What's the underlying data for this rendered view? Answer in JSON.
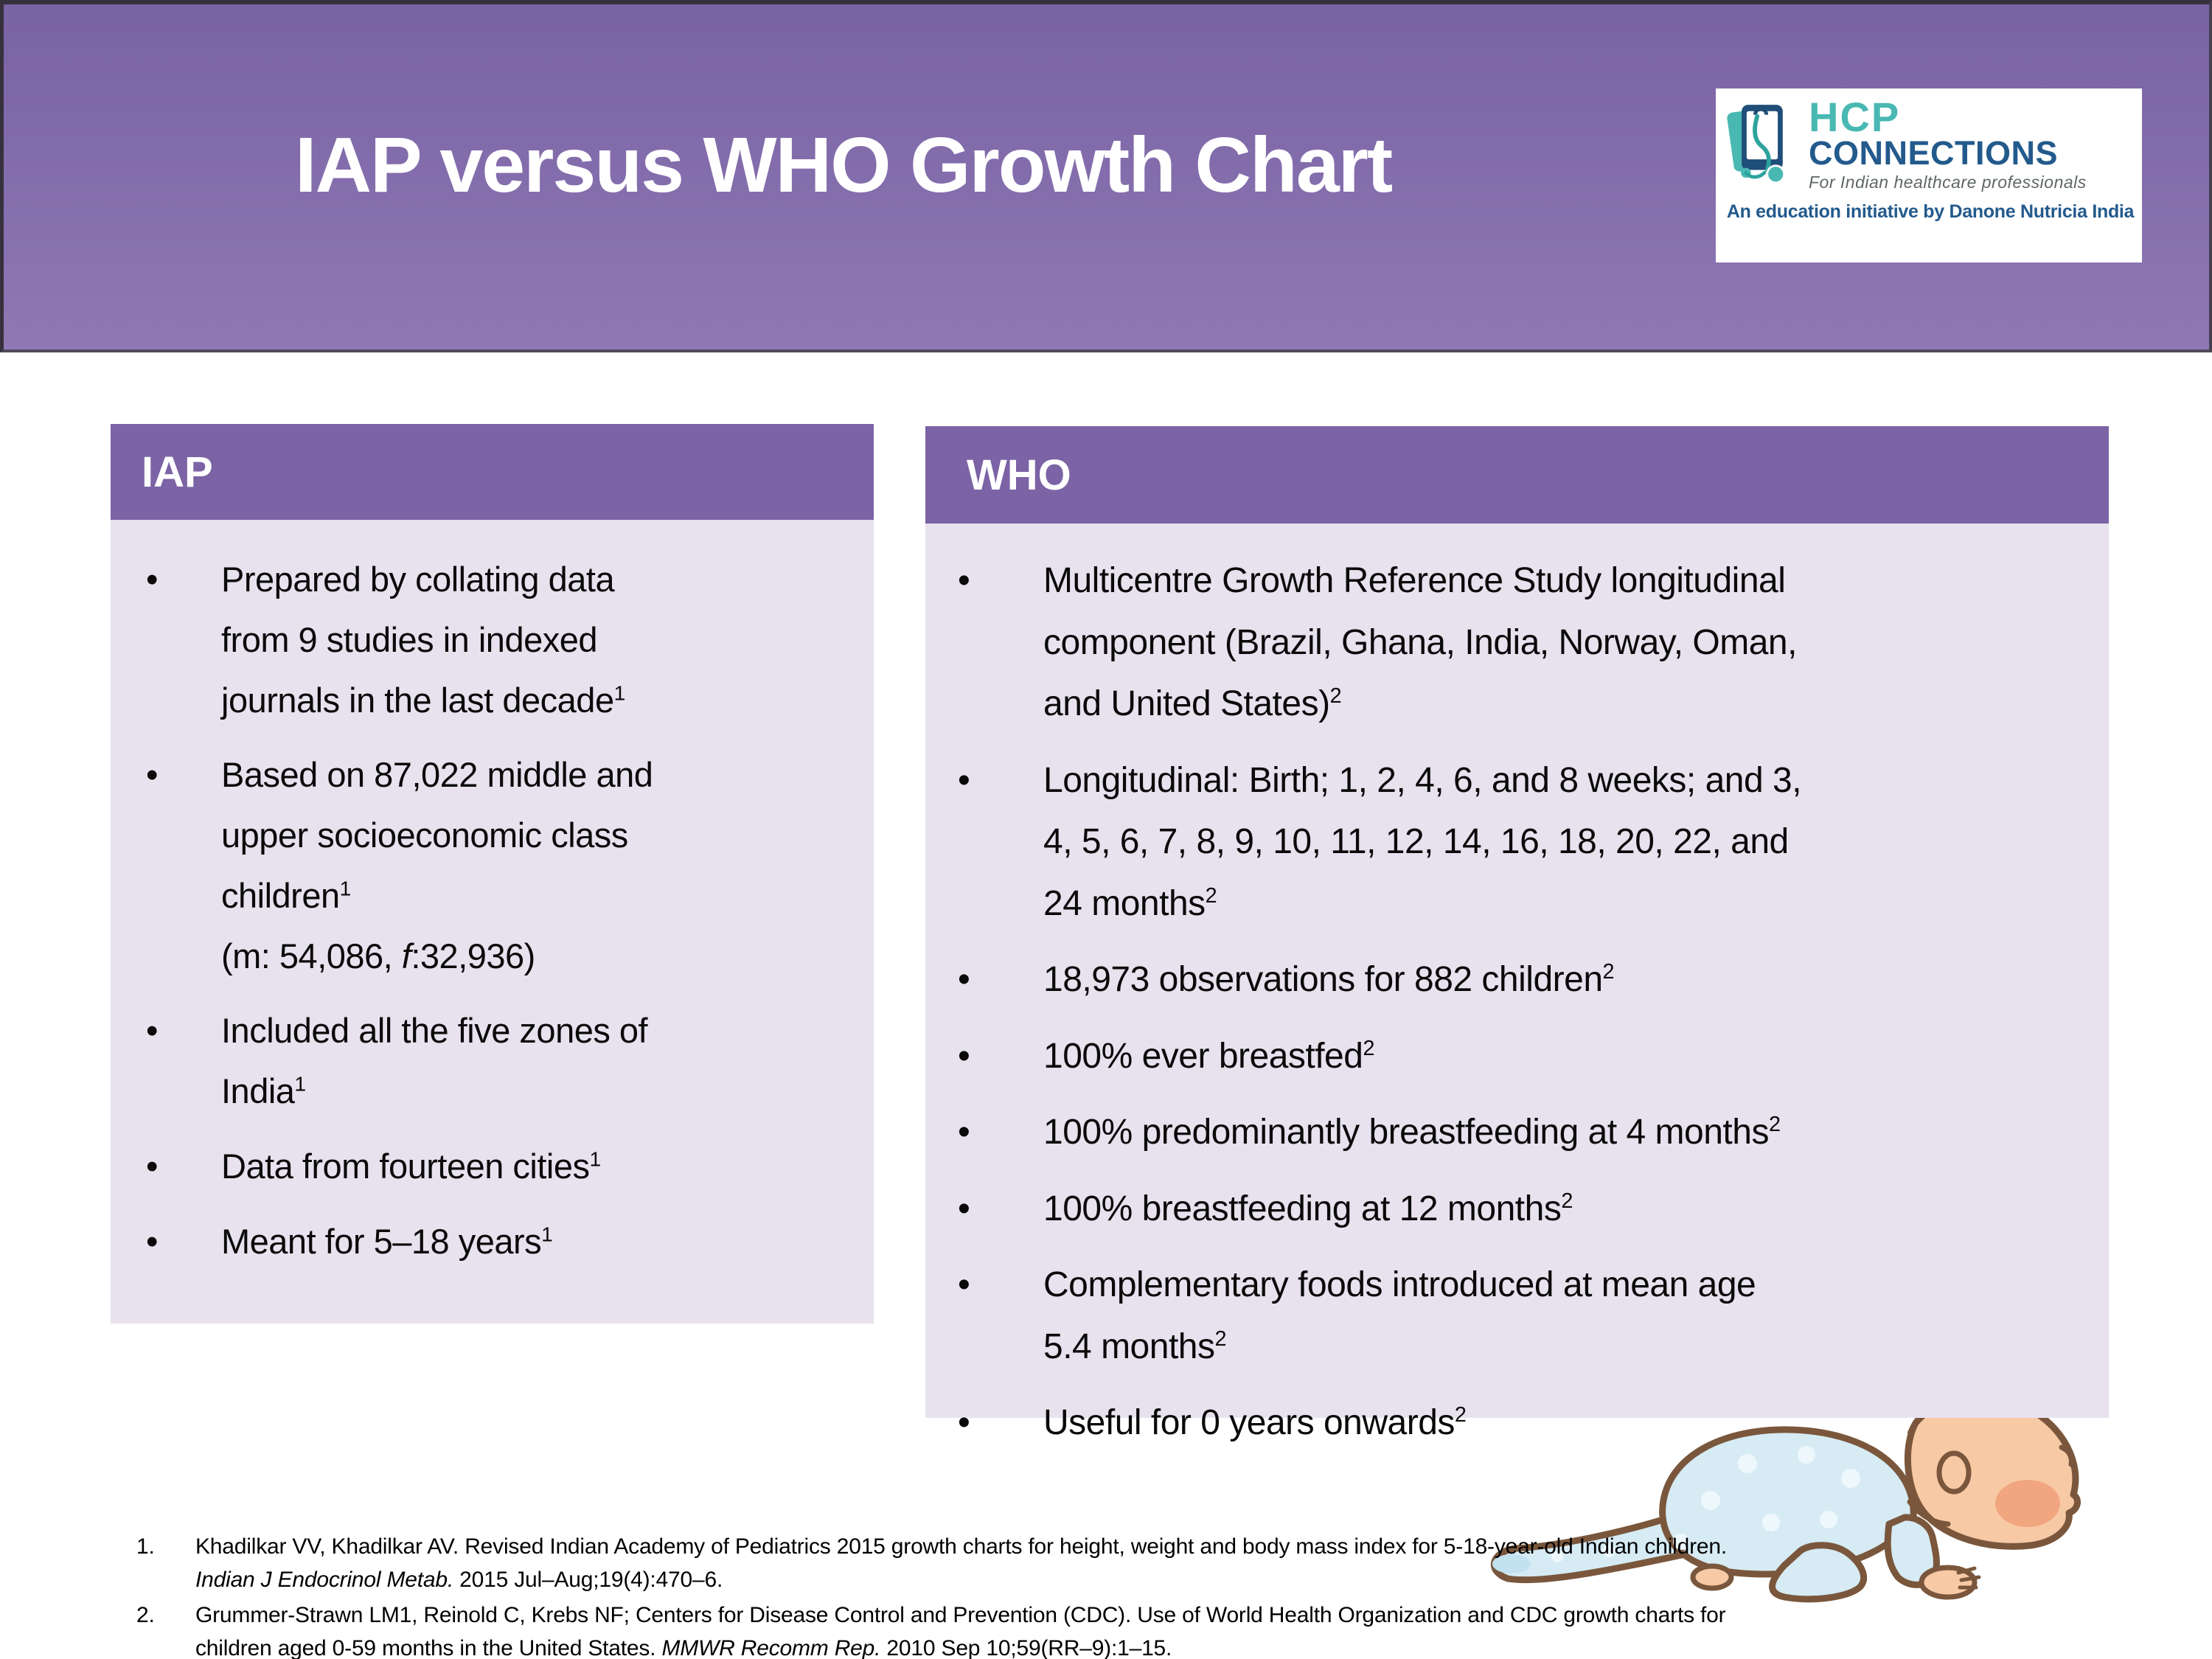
{
  "header": {
    "title": "IAP versus WHO Growth Chart"
  },
  "logo": {
    "icon": "tablet-stethoscope-icon",
    "name_line1": "HCP",
    "name_line2": "CONNECTIONS",
    "tagline": "For Indian healthcare professionals",
    "initiative": "An education initiative by Danone Nutricia India",
    "teal": "#49b8b2",
    "navy": "#235a8c"
  },
  "accent_colors": {
    "band_purple_top": "#7a63a2",
    "band_purple_bottom": "#8f78b4",
    "panel_header_purple": "#7b63a5",
    "panel_body_lavender": "#e7e2ee"
  },
  "panels": {
    "iap": {
      "title": "IAP",
      "bullets": [
        [
          {
            "t": "Prepared by collating data"
          },
          {
            "br": true
          },
          {
            "t": "from 9 studies in indexed"
          },
          {
            "br": true
          },
          {
            "t": "journals in the last decade"
          },
          {
            "t": "1",
            "sup": true
          }
        ],
        [
          {
            "t": "Based on 87,022 middle and"
          },
          {
            "br": true
          },
          {
            "t": "upper socioeconomic class"
          },
          {
            "br": true
          },
          {
            "t": "children"
          },
          {
            "t": "1",
            "sup": true
          },
          {
            "br": true
          },
          {
            "t": "(m: 54,086, "
          },
          {
            "t": "f",
            "i": true
          },
          {
            "t": ":32,936)"
          }
        ],
        [
          {
            "t": "Included all the five zones of"
          },
          {
            "br": true
          },
          {
            "t": "India"
          },
          {
            "t": "1",
            "sup": true
          }
        ],
        [
          {
            "t": "Data from fourteen cities"
          },
          {
            "t": "1",
            "sup": true
          }
        ],
        [
          {
            "t": "Meant for 5–18 years"
          },
          {
            "t": "1",
            "sup": true
          }
        ]
      ]
    },
    "who": {
      "title": "WHO",
      "bullets": [
        [
          {
            "t": "Multicentre Growth Reference Study longitudinal"
          },
          {
            "br": true
          },
          {
            "t": "component (Brazil, Ghana, India, Norway, Oman,"
          },
          {
            "br": true
          },
          {
            "t": "and United States)"
          },
          {
            "t": "2",
            "sup": true
          }
        ],
        [
          {
            "t": "Longitudinal: Birth; 1, 2, 4, 6, and 8 weeks; and 3,"
          },
          {
            "br": true
          },
          {
            "t": "4, 5, 6, 7, 8, 9, 10, 11, 12, 14, 16, 18, 20, 22, and"
          },
          {
            "br": true
          },
          {
            "t": "24 months"
          },
          {
            "t": "2",
            "sup": true
          }
        ],
        [
          {
            "t": "18,973 observations for 882 children"
          },
          {
            "t": "2",
            "sup": true
          }
        ],
        [
          {
            "t": "100% ever breastfed"
          },
          {
            "t": "2",
            "sup": true
          }
        ],
        [
          {
            "t": "100% predominantly breastfeeding at 4 months"
          },
          {
            "t": "2",
            "sup": true
          }
        ],
        [
          {
            "t": "100% breastfeeding at 12 months"
          },
          {
            "t": "2",
            "sup": true
          }
        ],
        [
          {
            "t": "Complementary foods introduced at mean age"
          },
          {
            "br": true
          },
          {
            "t": "5.4 months"
          },
          {
            "t": "2",
            "sup": true
          }
        ],
        [
          {
            "t": "Useful for 0 years onwards"
          },
          {
            "t": "2",
            "sup": true
          }
        ]
      ]
    }
  },
  "footnotes": [
    {
      "num": "1.",
      "segments": [
        {
          "t": "Khadilkar VV, Khadilkar AV. Revised Indian Academy of Pediatrics 2015 growth charts for height, weight and body mass index for 5-18-year-old Indian children."
        },
        {
          "br": true
        },
        {
          "t": "Indian J Endocrinol Metab.",
          "i": true
        },
        {
          "t": " 2015 Jul–Aug;19(4):470–6."
        }
      ]
    },
    {
      "num": "2.",
      "segments": [
        {
          "t": "Grummer-Strawn LM1, Reinold C, Krebs NF; Centers for Disease Control and Prevention (CDC). Use of World Health Organization and CDC growth charts for"
        },
        {
          "br": true
        },
        {
          "t": "children aged 0-59 months in the United States. "
        },
        {
          "t": "MMWR Recomm Rep.",
          "i": true
        },
        {
          "t": " 2010 Sep 10;59(RR–9):1–15."
        }
      ]
    }
  ],
  "illustration": "crawling-baby"
}
